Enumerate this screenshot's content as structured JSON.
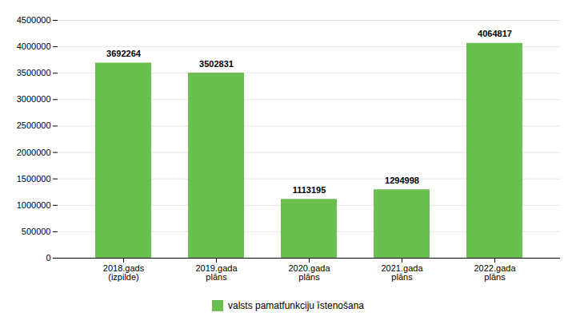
{
  "chart_data": {
    "type": "bar",
    "categories": [
      "2018.gads\n(izpilde)",
      "2019.gada\nplāns",
      "2020.gada\nplāns",
      "2021.gada\nplāns",
      "2022.gada\nplāns"
    ],
    "series": [
      {
        "name": "valsts pamatfunkciju īstenošana",
        "color": "#6BBF4E",
        "values": [
          3692264,
          3502831,
          1113195,
          1294998,
          4064817
        ]
      }
    ],
    "ylim": [
      0,
      4500000
    ],
    "yticks": [
      0,
      500000,
      1000000,
      1500000,
      2000000,
      2500000,
      3000000,
      3500000,
      4000000,
      4500000
    ],
    "grid": true,
    "data_labels": true,
    "legend": "bottom"
  }
}
